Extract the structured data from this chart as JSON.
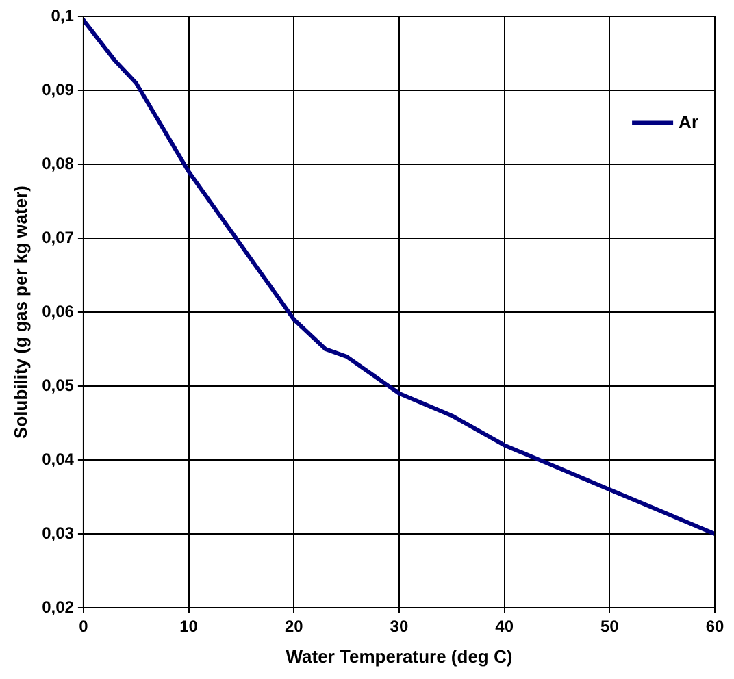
{
  "chart_data": {
    "type": "line",
    "xlabel": "Water Temperature (deg C)",
    "ylabel": "Solubility (g gas per kg water)",
    "x": [
      0,
      3,
      5,
      10,
      15,
      18,
      20,
      23,
      25,
      30,
      35,
      40,
      45,
      50,
      55,
      60
    ],
    "series": [
      {
        "name": "Ar",
        "color": "#000080",
        "values": [
          0.0995,
          0.094,
          0.091,
          0.079,
          0.069,
          0.063,
          0.059,
          0.055,
          0.054,
          0.049,
          0.046,
          0.042,
          0.039,
          0.036,
          0.033,
          0.03
        ]
      }
    ],
    "xlim": [
      0,
      60
    ],
    "xticks": [
      0,
      10,
      20,
      30,
      40,
      50,
      60
    ],
    "ylim": [
      0.02,
      0.1
    ],
    "yticks": [
      {
        "value": 0.02,
        "label": "0,02"
      },
      {
        "value": 0.03,
        "label": "0,03"
      },
      {
        "value": 0.04,
        "label": "0,04"
      },
      {
        "value": 0.05,
        "label": "0,05"
      },
      {
        "value": 0.06,
        "label": "0,06"
      },
      {
        "value": 0.07,
        "label": "0,07"
      },
      {
        "value": 0.08,
        "label": "0,08"
      },
      {
        "value": 0.09,
        "label": "0,09"
      },
      {
        "value": 0.1,
        "label": "0,1"
      }
    ],
    "grid": true,
    "legend": "top right",
    "marker": "none",
    "line_style": "solid"
  }
}
